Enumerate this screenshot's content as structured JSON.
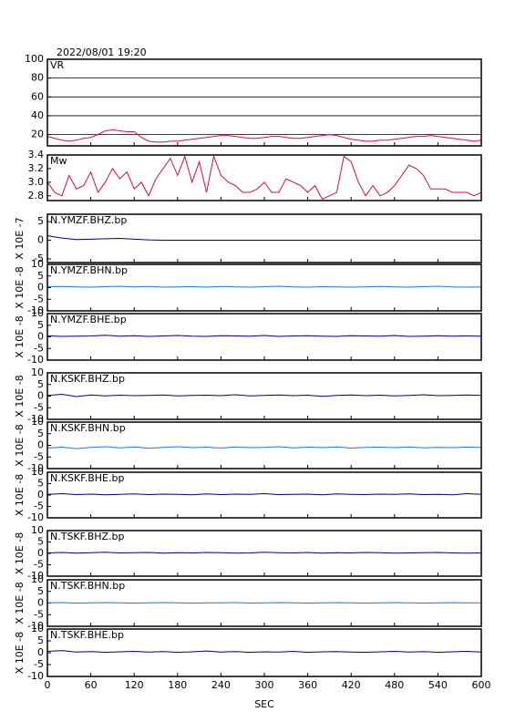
{
  "chart_data": [
    {
      "type": "line",
      "title": "2022/08/01 19:20",
      "grid": true,
      "x": [
        0,
        10,
        20,
        30,
        40,
        50,
        60,
        70,
        80,
        90,
        100,
        110,
        120,
        130,
        140,
        150,
        160,
        170,
        180,
        190,
        200,
        210,
        220,
        230,
        240,
        250,
        260,
        270,
        280,
        290,
        300,
        310,
        320,
        330,
        340,
        350,
        360,
        370,
        380,
        390,
        400,
        410,
        420,
        430,
        440,
        450,
        460,
        470,
        480,
        490,
        500,
        510,
        520,
        530,
        540,
        550,
        560,
        570,
        580,
        590,
        600
      ],
      "series": [
        {
          "name": "VR",
          "color": "#d0103a",
          "values": [
            18,
            16,
            14,
            13,
            14,
            16,
            17,
            20,
            24,
            25,
            24,
            23,
            23,
            17,
            13,
            12,
            12,
            13,
            13,
            14,
            15,
            16,
            17,
            18,
            19,
            19,
            18,
            17,
            16,
            16,
            17,
            18,
            18,
            17,
            16,
            16,
            17,
            18,
            19,
            20,
            19,
            17,
            15,
            14,
            13,
            13,
            14,
            14,
            15,
            16,
            17,
            18,
            18,
            19,
            18,
            17,
            16,
            15,
            14,
            13,
            14
          ]
        }
      ],
      "xlim": [
        0,
        600
      ],
      "xticks": [
        0,
        60,
        120,
        180,
        240,
        300,
        360,
        420,
        480,
        540,
        600
      ],
      "ylim": [
        8,
        100
      ],
      "yticks": [
        20,
        40,
        60,
        80,
        100
      ]
    },
    {
      "type": "line",
      "grid": false,
      "x": [
        0,
        10,
        20,
        30,
        40,
        50,
        60,
        70,
        80,
        90,
        100,
        110,
        120,
        130,
        140,
        150,
        160,
        170,
        180,
        190,
        200,
        210,
        220,
        230,
        240,
        250,
        260,
        270,
        280,
        290,
        300,
        310,
        320,
        330,
        340,
        350,
        360,
        370,
        380,
        390,
        400,
        410,
        420,
        430,
        440,
        450,
        460,
        470,
        480,
        490,
        500,
        510,
        520,
        530,
        540,
        550,
        560,
        570,
        580,
        590,
        600
      ],
      "series": [
        {
          "name": "Mw",
          "color": "#d0103a",
          "values": [
            3.0,
            2.85,
            2.8,
            3.1,
            2.9,
            2.95,
            3.15,
            2.85,
            3.0,
            3.2,
            3.05,
            3.15,
            2.9,
            3.0,
            2.8,
            3.05,
            3.2,
            3.35,
            3.1,
            3.38,
            3.0,
            3.3,
            2.85,
            3.38,
            3.1,
            3.0,
            2.95,
            2.85,
            2.85,
            2.9,
            3.0,
            2.85,
            2.85,
            3.05,
            3.0,
            2.95,
            2.85,
            2.95,
            2.75,
            2.8,
            2.85,
            3.38,
            3.3,
            3.0,
            2.8,
            2.95,
            2.8,
            2.85,
            2.95,
            3.1,
            3.25,
            3.2,
            3.1,
            2.9,
            2.9,
            2.9,
            2.85,
            2.85,
            2.85,
            2.8,
            2.85
          ]
        }
      ],
      "xlim": [
        0,
        600
      ],
      "xticks": [
        0,
        60,
        120,
        180,
        240,
        300,
        360,
        420,
        480,
        540,
        600
      ],
      "ylim": [
        2.73,
        3.4
      ],
      "yticks": [
        {
          "value": 2.8,
          "label": "2.8"
        },
        {
          "value": 3,
          "label": "3.0"
        },
        {
          "value": 3.2,
          "label": "3.2"
        },
        {
          "value": 3.4,
          "label": "3.4"
        }
      ]
    },
    {
      "type": "line",
      "ylabel": "X 10E -7",
      "grid": false,
      "x": [
        0,
        20,
        40,
        60,
        80,
        100,
        120,
        140,
        160,
        180,
        200,
        220,
        240,
        260,
        280,
        300,
        320,
        340,
        360,
        380,
        400,
        420,
        440,
        460,
        480,
        500,
        520,
        540,
        560,
        580,
        600
      ],
      "series": [
        {
          "name": "N.YMZF.BHZ.bp",
          "color": "#000080",
          "values": [
            1.2,
            0.6,
            0.2,
            0.3,
            0.4,
            0.5,
            0.3,
            0.1,
            0,
            0,
            0,
            0,
            0,
            0,
            0,
            0,
            0,
            0,
            0,
            0,
            0,
            0,
            0,
            0,
            0,
            0,
            0,
            0,
            0,
            0,
            0
          ]
        }
      ],
      "xlim": [
        0,
        600
      ],
      "xticks": [
        0,
        60,
        120,
        180,
        240,
        300,
        360,
        420,
        480,
        540,
        600
      ],
      "ylim": [
        -6,
        7
      ],
      "yticks": [
        -5,
        0,
        5
      ]
    },
    {
      "type": "line",
      "ylabel": "X 10E -8",
      "grid": false,
      "x": [
        0,
        20,
        40,
        60,
        80,
        100,
        120,
        140,
        160,
        180,
        200,
        220,
        240,
        260,
        280,
        300,
        320,
        340,
        360,
        380,
        400,
        420,
        440,
        460,
        480,
        500,
        520,
        540,
        560,
        580,
        600
      ],
      "series": [
        {
          "name": "N.YMZF.BHN.bp",
          "color": "#1e78d2",
          "values": [
            0.4,
            0.5,
            0.3,
            0.2,
            0.4,
            0.6,
            0.3,
            0.5,
            0.2,
            0.3,
            0.4,
            0.2,
            0.5,
            0.3,
            0.2,
            0.4,
            0.6,
            0.3,
            0.2,
            0.4,
            0.3,
            0.2,
            0.3,
            0.5,
            0.3,
            0.2,
            0.4,
            0.6,
            0.3,
            0.2,
            0.3
          ]
        }
      ],
      "xlim": [
        0,
        600
      ],
      "xticks": [
        0,
        60,
        120,
        180,
        240,
        300,
        360,
        420,
        480,
        540,
        600
      ],
      "ylim": [
        -10,
        10
      ],
      "yticks": [
        -10,
        -5,
        0,
        5,
        10
      ]
    },
    {
      "type": "line",
      "ylabel": "X 10E -8",
      "grid": false,
      "x": [
        0,
        20,
        40,
        60,
        80,
        100,
        120,
        140,
        160,
        180,
        200,
        220,
        240,
        260,
        280,
        300,
        320,
        340,
        360,
        380,
        400,
        420,
        440,
        460,
        480,
        500,
        520,
        540,
        560,
        580,
        600
      ],
      "series": [
        {
          "name": "N.YMZF.BHE.bp",
          "color": "#000080",
          "values": [
            0.5,
            0.2,
            0.3,
            0.4,
            0.7,
            0.3,
            0.5,
            0.2,
            0.4,
            0.6,
            0.3,
            0.2,
            0.5,
            0.4,
            0.3,
            0.6,
            0.2,
            0.4,
            0.5,
            0.3,
            0.2,
            0.5,
            0.4,
            0.3,
            0.6,
            0.2,
            0.3,
            0.5,
            0.3,
            0.4,
            0.3
          ]
        }
      ],
      "xlim": [
        0,
        600
      ],
      "xticks": [
        0,
        60,
        120,
        180,
        240,
        300,
        360,
        420,
        480,
        540,
        600
      ],
      "ylim": [
        -10,
        10
      ],
      "yticks": [
        -10,
        -5,
        0,
        5,
        10
      ]
    },
    {
      "type": "line",
      "ylabel": "X 10E -8",
      "grid": false,
      "x": [
        0,
        20,
        40,
        60,
        80,
        100,
        120,
        140,
        160,
        180,
        200,
        220,
        240,
        260,
        280,
        300,
        320,
        340,
        360,
        380,
        400,
        420,
        440,
        460,
        480,
        500,
        520,
        540,
        560,
        580,
        600
      ],
      "series": [
        {
          "name": "N.KSKF.BHZ.bp",
          "color": "#000080",
          "values": [
            0.3,
            0.8,
            -0.2,
            0.5,
            0.1,
            0.4,
            0.2,
            0.3,
            0.5,
            0.1,
            0.3,
            0.4,
            0.2,
            0.6,
            0.1,
            0.3,
            0.5,
            0.2,
            0.4,
            -0.1,
            0.3,
            0.5,
            0.2,
            0.4,
            0.1,
            0.3,
            0.6,
            0.2,
            0.3,
            0.5,
            0.3
          ]
        }
      ],
      "xlim": [
        0,
        600
      ],
      "xticks": [
        0,
        60,
        120,
        180,
        240,
        300,
        360,
        420,
        480,
        540,
        600
      ],
      "ylim": [
        -10,
        10
      ],
      "yticks": [
        -10,
        -5,
        0,
        5,
        10
      ]
    },
    {
      "type": "line",
      "ylabel": "X 10E -8",
      "grid": false,
      "x": [
        0,
        20,
        40,
        60,
        80,
        100,
        120,
        140,
        160,
        180,
        200,
        220,
        240,
        260,
        280,
        300,
        320,
        340,
        360,
        380,
        400,
        420,
        440,
        460,
        480,
        500,
        520,
        540,
        560,
        580,
        600
      ],
      "series": [
        {
          "name": "N.KSKF.BHN.bp",
          "color": "#1e78d2",
          "values": [
            -1.2,
            -0.8,
            -1.4,
            -0.9,
            -0.6,
            -1.1,
            -0.7,
            -1.3,
            -0.9,
            -0.6,
            -1.0,
            -0.8,
            -1.2,
            -0.7,
            -1.0,
            -0.9,
            -0.6,
            -1.1,
            -0.8,
            -1.0,
            -0.7,
            -1.2,
            -0.9,
            -0.8,
            -1.0,
            -0.7,
            -1.1,
            -0.9,
            -1.0,
            -0.8,
            -0.9
          ]
        }
      ],
      "xlim": [
        0,
        600
      ],
      "xticks": [
        0,
        60,
        120,
        180,
        240,
        300,
        360,
        420,
        480,
        540,
        600
      ],
      "ylim": [
        -10,
        10
      ],
      "yticks": [
        -10,
        -5,
        0,
        5,
        10
      ]
    },
    {
      "type": "line",
      "ylabel": "X 10E -8",
      "grid": false,
      "x": [
        0,
        20,
        40,
        60,
        80,
        100,
        120,
        140,
        160,
        180,
        200,
        220,
        240,
        260,
        280,
        300,
        320,
        340,
        360,
        380,
        400,
        420,
        440,
        460,
        480,
        500,
        520,
        540,
        560,
        580,
        600
      ],
      "series": [
        {
          "name": "N.KSKF.BHE.bp",
          "color": "#000080",
          "values": [
            0.3,
            0.6,
            0.2,
            0.4,
            0.1,
            0.3,
            0.5,
            0.2,
            0.4,
            0.3,
            0.1,
            0.5,
            0.2,
            0.4,
            0.3,
            0.6,
            0.2,
            0.3,
            0.4,
            0.1,
            0.5,
            0.3,
            0.2,
            0.4,
            0.3,
            0.5,
            0.2,
            0.3,
            0.1,
            0.6,
            0.3
          ]
        }
      ],
      "xlim": [
        0,
        600
      ],
      "xticks": [
        0,
        60,
        120,
        180,
        240,
        300,
        360,
        420,
        480,
        540,
        600
      ],
      "ylim": [
        -10,
        10
      ],
      "yticks": [
        -10,
        -5,
        0,
        5,
        10
      ]
    },
    {
      "type": "line",
      "ylabel": "X 10E -8",
      "grid": false,
      "x": [
        0,
        20,
        40,
        60,
        80,
        100,
        120,
        140,
        160,
        180,
        200,
        220,
        240,
        260,
        280,
        300,
        320,
        340,
        360,
        380,
        400,
        420,
        440,
        460,
        480,
        500,
        520,
        540,
        560,
        580,
        600
      ],
      "series": [
        {
          "name": "N.TSKF.BHZ.bp",
          "color": "#000080",
          "values": [
            0.2,
            0.4,
            0.1,
            0.3,
            0.5,
            0.2,
            0.3,
            0.4,
            0.1,
            0.3,
            0.2,
            0.4,
            0.3,
            0.1,
            0.2,
            0.5,
            0.3,
            0.2,
            0.4,
            0.1,
            0.3,
            0.2,
            0.4,
            0.3,
            0.1,
            0.2,
            0.3,
            0.4,
            0.2,
            0.1,
            0.2
          ]
        }
      ],
      "xlim": [
        0,
        600
      ],
      "xticks": [
        0,
        60,
        120,
        180,
        240,
        300,
        360,
        420,
        480,
        540,
        600
      ],
      "ylim": [
        -10,
        10
      ],
      "yticks": [
        -10,
        -5,
        0,
        5,
        10
      ]
    },
    {
      "type": "line",
      "ylabel": "X 10E -8",
      "grid": false,
      "x": [
        0,
        20,
        40,
        60,
        80,
        100,
        120,
        140,
        160,
        180,
        200,
        220,
        240,
        260,
        280,
        300,
        320,
        340,
        360,
        380,
        400,
        420,
        440,
        460,
        480,
        500,
        520,
        540,
        560,
        580,
        600
      ],
      "series": [
        {
          "name": "N.TSKF.BHN.bp",
          "color": "#1e78d2",
          "values": [
            0.1,
            0.2,
            0,
            0.1,
            0.2,
            0.1,
            0,
            0.1,
            0.2,
            0.1,
            0,
            0.1,
            0.1,
            0.2,
            0,
            0.1,
            0.2,
            0.1,
            0,
            0.1,
            0.2,
            0.1,
            0,
            0.1,
            0.2,
            0.1,
            0,
            0.1,
            0.2,
            0.1,
            0.1
          ]
        }
      ],
      "xlim": [
        0,
        600
      ],
      "xticks": [
        0,
        60,
        120,
        180,
        240,
        300,
        360,
        420,
        480,
        540,
        600
      ],
      "ylim": [
        -10,
        10
      ],
      "yticks": [
        -10,
        -5,
        0,
        5,
        10
      ]
    },
    {
      "type": "line",
      "ylabel": "X 10E -8",
      "xlabel": "SEC",
      "grid": false,
      "x": [
        0,
        20,
        40,
        60,
        80,
        100,
        120,
        140,
        160,
        180,
        200,
        220,
        240,
        260,
        280,
        300,
        320,
        340,
        360,
        380,
        400,
        420,
        440,
        460,
        480,
        500,
        520,
        540,
        560,
        580,
        600
      ],
      "series": [
        {
          "name": "N.TSKF.BHE.bp",
          "color": "#000080",
          "values": [
            0.6,
            0.9,
            0.3,
            0.5,
            0.2,
            0.4,
            0.6,
            0.3,
            0.5,
            0.2,
            0.4,
            0.7,
            0.3,
            0.5,
            0.2,
            0.4,
            0.3,
            0.6,
            0.2,
            0.4,
            0.5,
            0.3,
            0.2,
            0.4,
            0.6,
            0.3,
            0.5,
            0.2,
            0.4,
            0.6,
            0.3
          ]
        }
      ],
      "xlim": [
        0,
        600
      ],
      "xticks": [
        0,
        60,
        120,
        180,
        240,
        300,
        360,
        420,
        480,
        540,
        600
      ],
      "ylim": [
        -10,
        10
      ],
      "yticks": [
        -10,
        -5,
        0,
        5,
        10
      ]
    }
  ]
}
